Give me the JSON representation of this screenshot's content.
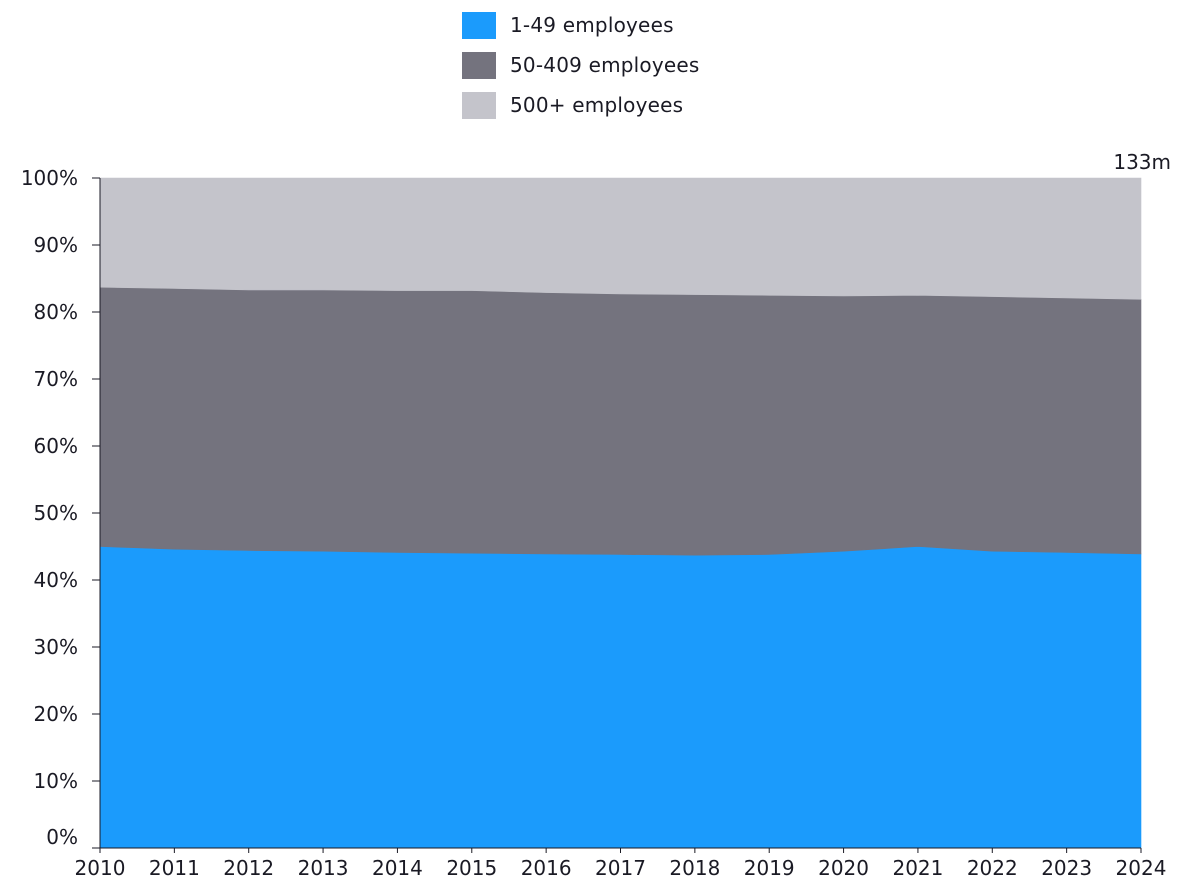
{
  "chart_data": {
    "type": "area",
    "stacked": true,
    "normalized": true,
    "x": [
      2010,
      2011,
      2012,
      2013,
      2014,
      2015,
      2016,
      2017,
      2018,
      2019,
      2020,
      2021,
      2022,
      2023,
      2024
    ],
    "series": [
      {
        "name": "1-49 employees",
        "color": "#1b9bfc",
        "values": [
          45.0,
          44.6,
          44.4,
          44.3,
          44.1,
          44.0,
          43.9,
          43.8,
          43.7,
          43.8,
          44.3,
          45.0,
          44.3,
          44.1,
          43.9
        ]
      },
      {
        "name": "50-409 employees",
        "color": "#74737e",
        "values": [
          38.7,
          38.9,
          38.9,
          39.0,
          39.1,
          39.2,
          39.0,
          38.9,
          38.9,
          38.7,
          38.1,
          37.5,
          38.0,
          38.0,
          38.0
        ]
      },
      {
        "name": "500+ employees",
        "color": "#c4c4cb",
        "values": [
          16.3,
          16.5,
          16.7,
          16.7,
          16.8,
          16.8,
          17.1,
          17.3,
          17.4,
          17.5,
          17.6,
          17.5,
          17.7,
          17.9,
          18.1
        ]
      }
    ],
    "y_ticks": [
      "0%",
      "10%",
      "20%",
      "30%",
      "40%",
      "50%",
      "60%",
      "70%",
      "80%",
      "90%",
      "100%"
    ],
    "x_ticks": [
      "2010",
      "2011",
      "2012",
      "2013",
      "2014",
      "2015",
      "2016",
      "2017",
      "2018",
      "2019",
      "2020",
      "2021",
      "2022",
      "2023",
      "2024"
    ],
    "ylim": [
      0,
      100
    ],
    "annotation": "133m",
    "legend_position": "top-center",
    "grid": false,
    "title": "",
    "xlabel": "",
    "ylabel": ""
  }
}
